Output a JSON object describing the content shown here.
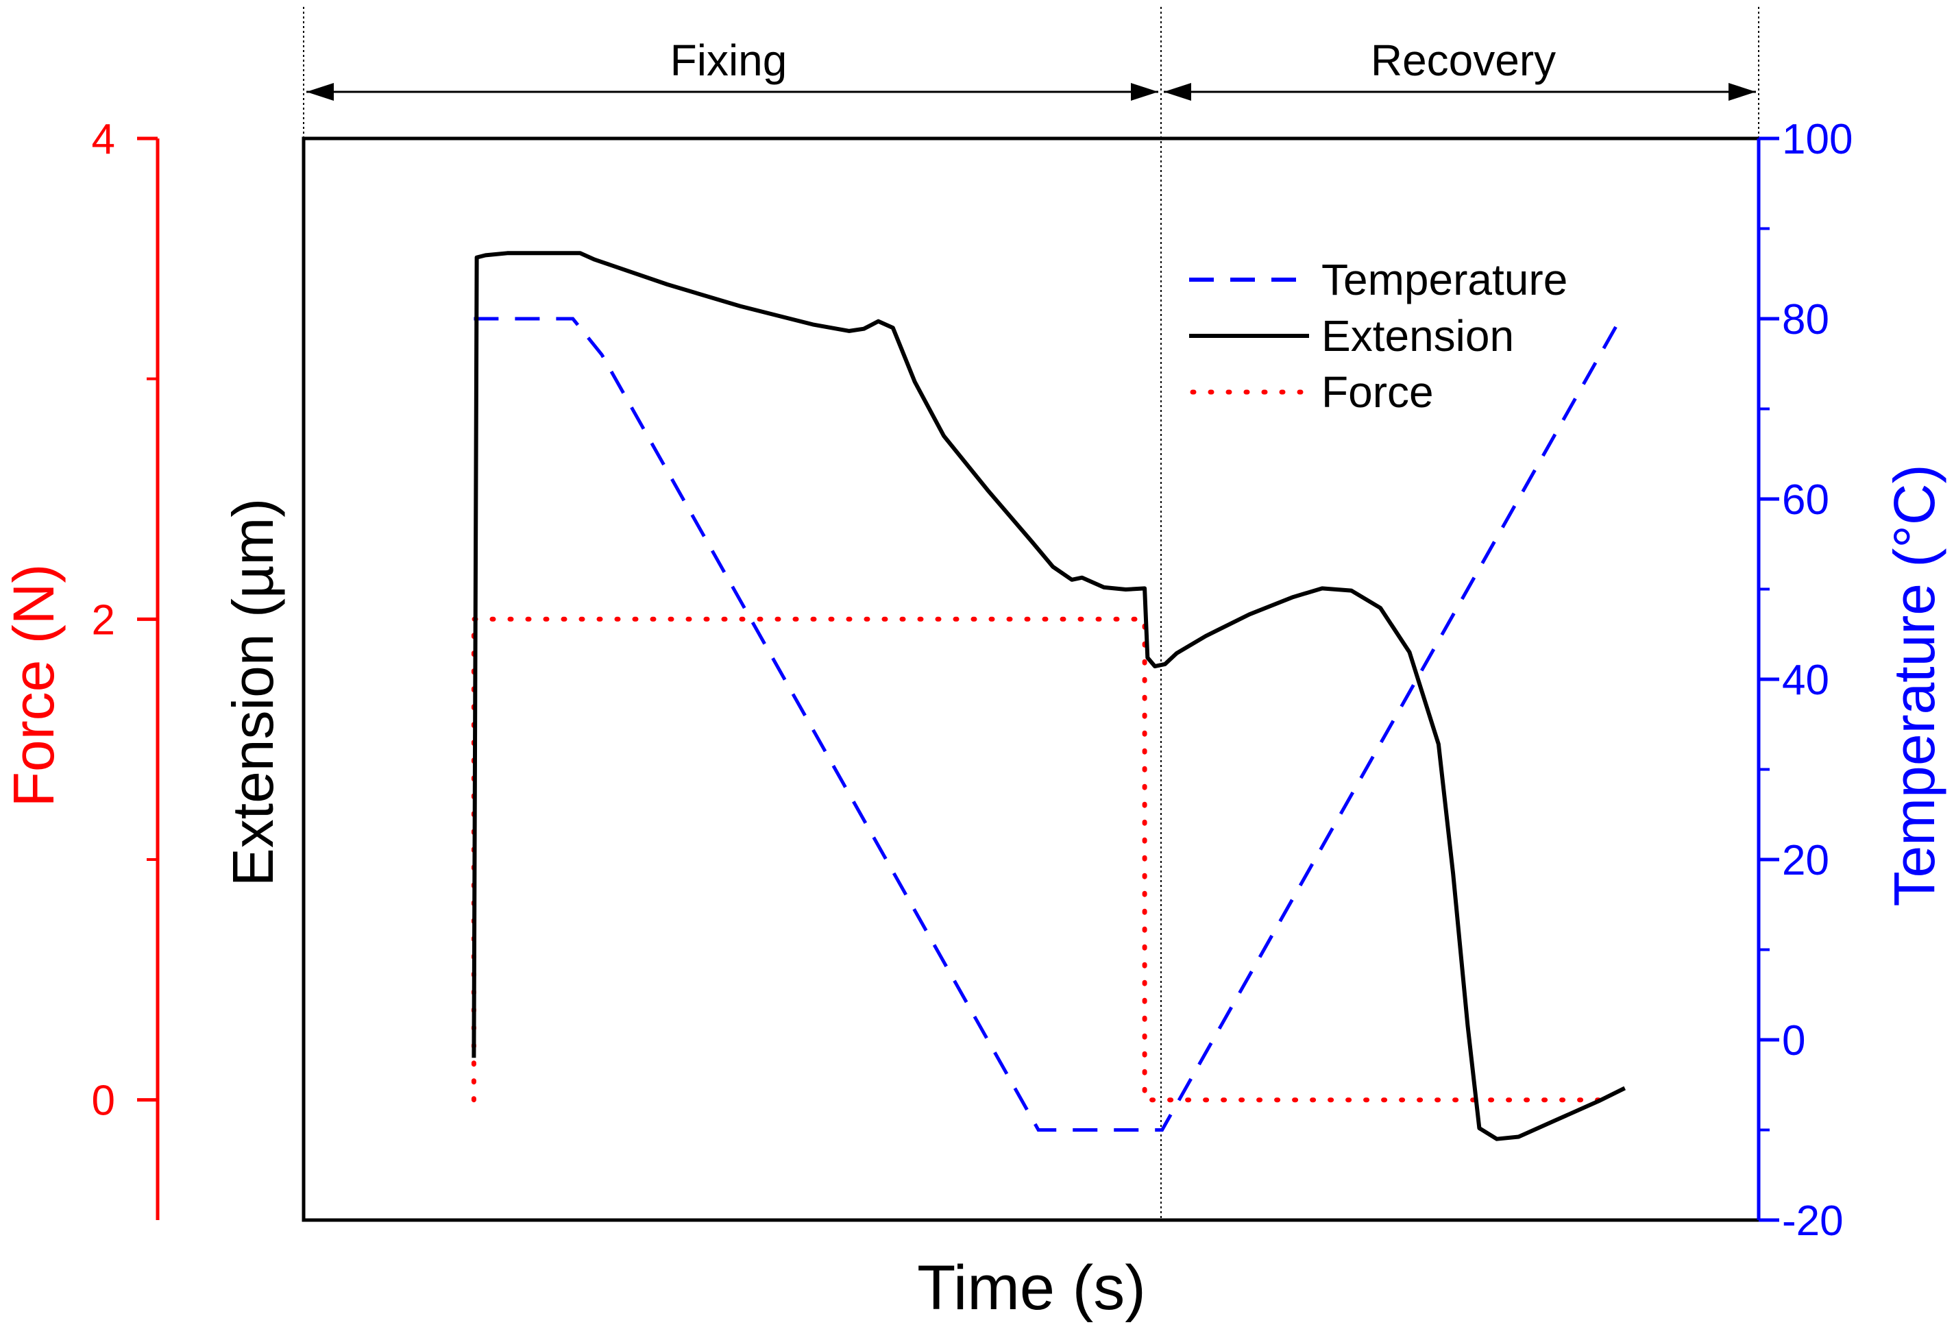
{
  "chart_data": {
    "type": "line",
    "title": "",
    "xlabel": "Time (s)",
    "phases": [
      {
        "label": "Fixing",
        "x_range": [
          0,
          0.59
        ]
      },
      {
        "label": "Recovery",
        "x_range": [
          0.59,
          1.0
        ]
      }
    ],
    "x": {
      "range": [
        0,
        1
      ],
      "tick_labels": []
    },
    "axes": {
      "force": {
        "label": "Force (N)",
        "side": "left-outer",
        "color": "#ff0000",
        "range": [
          -0.5,
          4.0
        ],
        "major_ticks": [
          0,
          2,
          4
        ],
        "minor_ticks": [
          1,
          3
        ]
      },
      "extension": {
        "label": "Extension (µm)",
        "unit_symbol": "µ",
        "side": "left-inner",
        "color": "#000000",
        "range": [
          0,
          100
        ],
        "tick_labels": []
      },
      "temperature": {
        "label": "Temperature (°C)",
        "side": "right",
        "color": "#0000ff",
        "range": [
          -20,
          100
        ],
        "major_ticks": [
          -20,
          0,
          20,
          40,
          60,
          80,
          100
        ],
        "minor_ticks": [
          -10,
          10,
          30,
          50,
          70,
          90
        ]
      }
    },
    "legend": {
      "position": "top-right",
      "entries": [
        {
          "label": "Temperature",
          "style": "dashed",
          "color": "#0000ff"
        },
        {
          "label": "Extension",
          "style": "solid",
          "color": "#000000"
        },
        {
          "label": "Force",
          "style": "dotted",
          "color": "#ff0000"
        }
      ]
    },
    "series": [
      {
        "name": "Temperature",
        "axis": "temperature",
        "color": "#0000ff",
        "style": "dashed",
        "points": [
          [
            0.117,
            80
          ],
          [
            0.185,
            80
          ],
          [
            0.205,
            76
          ],
          [
            0.505,
            -10
          ],
          [
            0.59,
            -10
          ],
          [
            0.905,
            80
          ]
        ]
      },
      {
        "name": "Force",
        "axis": "force",
        "color": "#ff0000",
        "style": "dotted",
        "points": [
          [
            0.117,
            0
          ],
          [
            0.117,
            2
          ],
          [
            0.578,
            2
          ],
          [
            0.578,
            0
          ],
          [
            0.9,
            0
          ]
        ]
      },
      {
        "name": "Extension",
        "axis": "extension",
        "color": "#000000",
        "style": "solid",
        "points": [
          [
            0.117,
            15
          ],
          [
            0.119,
            89
          ],
          [
            0.125,
            89.2
          ],
          [
            0.14,
            89.4
          ],
          [
            0.16,
            89.4
          ],
          [
            0.19,
            89.4
          ],
          [
            0.2,
            88.8
          ],
          [
            0.25,
            86.5
          ],
          [
            0.3,
            84.5
          ],
          [
            0.35,
            82.8
          ],
          [
            0.375,
            82.2
          ],
          [
            0.385,
            82.4
          ],
          [
            0.395,
            83.1
          ],
          [
            0.405,
            82.5
          ],
          [
            0.42,
            77.5
          ],
          [
            0.44,
            72.5
          ],
          [
            0.47,
            67.5
          ],
          [
            0.5,
            62.8
          ],
          [
            0.515,
            60.4
          ],
          [
            0.528,
            59.2
          ],
          [
            0.535,
            59.4
          ],
          [
            0.55,
            58.5
          ],
          [
            0.565,
            58.3
          ],
          [
            0.578,
            58.4
          ],
          [
            0.58,
            52
          ],
          [
            0.585,
            51.2
          ],
          [
            0.592,
            51.4
          ],
          [
            0.6,
            52.4
          ],
          [
            0.62,
            54
          ],
          [
            0.65,
            56
          ],
          [
            0.68,
            57.6
          ],
          [
            0.7,
            58.4
          ],
          [
            0.72,
            58.2
          ],
          [
            0.74,
            56.6
          ],
          [
            0.76,
            52.5
          ],
          [
            0.78,
            44
          ],
          [
            0.79,
            32
          ],
          [
            0.8,
            18
          ],
          [
            0.808,
            8.5
          ],
          [
            0.82,
            7.5
          ],
          [
            0.835,
            7.7
          ],
          [
            0.86,
            9.2
          ],
          [
            0.89,
            11
          ],
          [
            0.908,
            12.2
          ]
        ]
      }
    ]
  }
}
